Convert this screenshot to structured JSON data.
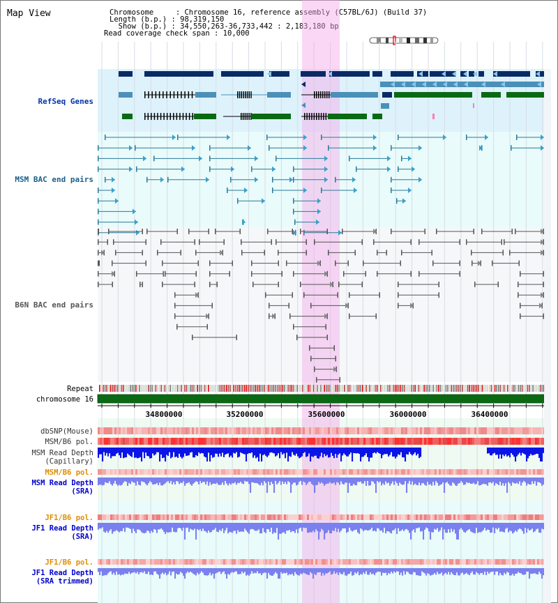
{
  "title": "Map View",
  "info": {
    "line1": "Chromosome     : Chromosome 16, reference assembly (C57BL/6J) (Build 37)",
    "line2": "Length (b.p.) : 98,319,150",
    "line3": "  Show (b.p.) : 34,550,263-36,733,442 : 2,183,180 bp",
    "line4": "Read coverage check span : 10,000"
  },
  "tracks": {
    "refseq": "RefSeq Genes",
    "msm_bac": "MSM BAC end pairs",
    "b6n_bac": "B6N BAC end pairs",
    "repeat": "Repeat",
    "chromosome": "chromosome 16"
  },
  "axis": {
    "ticks": [
      "34800000",
      "35200000",
      "35600000",
      "36000000",
      "36400000"
    ]
  },
  "lower_tracks": [
    {
      "label": "dbSNP(Mouse)",
      "color": "#333333"
    },
    {
      "label": "MSM/B6 pol.",
      "color": "#333333"
    },
    {
      "label": "MSM Read Depth",
      "label2": "(Capillary)",
      "color": "#333333"
    },
    {
      "label": "MSM/B6 pol.",
      "color": "#e08c00"
    },
    {
      "label": "MSM Read Depth",
      "label2": "(SRA)",
      "color": "#0000cc"
    },
    {
      "label": "JF1/B6 pol.",
      "color": "#e08c00"
    },
    {
      "label": "JF1 Read Depth",
      "label2": "(SRA)",
      "color": "#0000cc"
    },
    {
      "label": "JF1/B6 pol.",
      "color": "#e08c00"
    },
    {
      "label": "JF1 Read Depth",
      "label2": "(SRA trimmed)",
      "color": "#0000cc"
    }
  ],
  "colors": {
    "refseq_bg": "#def2fc",
    "track_bg": "#e9fbfb",
    "highlight": "#fadbf5",
    "gene_dark": "#0a2a66",
    "gene_mid": "#4a90b8",
    "gene_green": "#0a6a14",
    "msm_line": "#2a7a9a",
    "b6n_line": "#555555",
    "depth_dark": "#0a14e6",
    "depth_light": "#7a80ee"
  }
}
